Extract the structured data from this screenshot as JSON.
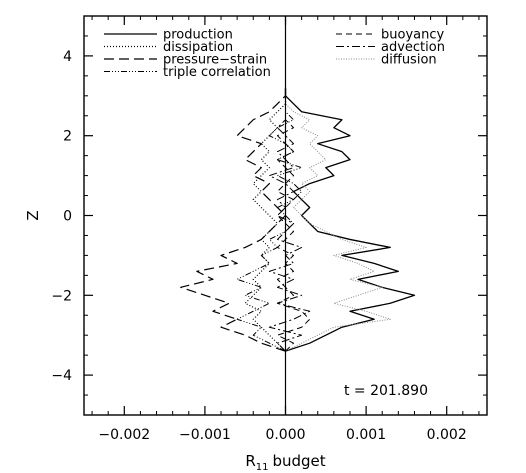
{
  "chart_data": {
    "type": "line",
    "title": "",
    "xlabel": "budget",
    "xlabel_prefix": "R",
    "xlabel_subscript": "11",
    "ylabel": "Z",
    "xlim": [
      -0.0025,
      0.0025
    ],
    "ylim": [
      -5,
      5
    ],
    "x_ticks": [
      -0.002,
      -0.001,
      0.0,
      0.001,
      0.002
    ],
    "x_tick_labels": [
      "−0.002",
      "−0.001",
      "0.000",
      "0.001",
      "0.002"
    ],
    "y_ticks": [
      -4,
      -2,
      0,
      2,
      4
    ],
    "y_tick_labels": [
      "−4",
      "−2",
      "0",
      "2",
      "4"
    ],
    "grid": false,
    "legend_placement": "top",
    "annotation": "t = 201.890",
    "z": [
      -3.4,
      -3.2,
      -3.0,
      -2.8,
      -2.6,
      -2.4,
      -2.2,
      -2.0,
      -1.8,
      -1.6,
      -1.4,
      -1.2,
      -1.0,
      -0.8,
      -0.6,
      -0.4,
      -0.2,
      0.0,
      0.2,
      0.4,
      0.6,
      0.8,
      1.0,
      1.2,
      1.4,
      1.6,
      1.8,
      2.0,
      2.2,
      2.4,
      2.6,
      2.8,
      3.0,
      3.2
    ],
    "series": [
      {
        "name": "production",
        "dash": "solid",
        "color": "#000000",
        "width": 1.3,
        "values": [
          0.0,
          0.0003,
          0.0005,
          0.0007,
          0.0011,
          0.0008,
          0.0013,
          0.0016,
          0.0012,
          0.0009,
          0.0014,
          0.0011,
          0.0007,
          0.0013,
          0.0008,
          0.0004,
          0.0003,
          0.0002,
          0.0003,
          0.0002,
          0.0001,
          0.0003,
          0.0006,
          0.0005,
          0.0008,
          0.0007,
          0.0004,
          0.0008,
          0.0006,
          0.0007,
          0.0002,
          0.0001,
          0.0,
          0.0
        ]
      },
      {
        "name": "dissipation",
        "dash": "1,2",
        "color": "#000000",
        "width": 1.2,
        "values": [
          0.0,
          -0.0001,
          -0.0002,
          -0.0003,
          -0.0004,
          -0.0003,
          -0.0005,
          -0.0004,
          -0.0003,
          -0.0004,
          -0.0003,
          -0.0002,
          -0.0003,
          -0.0002,
          -0.0003,
          -0.0002,
          -0.0001,
          -0.0002,
          -0.0003,
          -0.0004,
          -0.0003,
          -0.0004,
          -0.0003,
          -0.0002,
          -0.0003,
          -0.0002,
          -0.0003,
          -0.0002,
          -0.0001,
          -0.0002,
          -0.0001,
          0.0,
          0.0,
          0.0
        ]
      },
      {
        "name": "pressure−strain",
        "dash": "10,5",
        "color": "#000000",
        "width": 1.2,
        "values": [
          0.0,
          -0.0003,
          -0.0005,
          -0.0008,
          -0.0006,
          -0.0009,
          -0.0007,
          -0.001,
          -0.0013,
          -0.0009,
          -0.0011,
          -0.0006,
          -0.0008,
          -0.0005,
          -0.0003,
          -0.0002,
          -0.0001,
          0.0,
          -0.0001,
          -0.0002,
          -0.0003,
          -0.0002,
          -0.0004,
          -0.0003,
          -0.0005,
          -0.0004,
          -0.0003,
          -0.0006,
          -0.0005,
          -0.0004,
          -0.0002,
          -0.0001,
          0.0,
          0.0
        ]
      },
      {
        "name": "triple correlation",
        "dash": "6,2,1,2,1,2,1,2",
        "color": "#000000",
        "width": 1.0,
        "values": [
          0.0,
          -0.0002,
          -0.0004,
          -0.0003,
          -0.0006,
          -0.0004,
          -0.0002,
          -0.0005,
          -0.0003,
          -0.0006,
          -0.0004,
          -0.0002,
          -0.0003,
          -0.0001,
          -0.0002,
          0.0,
          0.0001,
          0.0,
          -0.0001,
          0.0001,
          0.0002,
          0.0001,
          -0.0001,
          0.0002,
          -0.0001,
          0.0001,
          0.0,
          -0.0002,
          -0.0001,
          0.0001,
          0.0,
          0.0,
          0.0,
          0.0
        ]
      },
      {
        "name": "buoyancy",
        "dash": "6,4",
        "color": "#000000",
        "width": 1.0,
        "values": [
          0.0,
          0.0001,
          -0.0001,
          0.0002,
          0.0003,
          0.0002,
          -0.0001,
          0.0001,
          0.0,
          -0.0001,
          0.0001,
          0.0,
          0.0001,
          -0.0001,
          0.0,
          0.0001,
          0.0,
          -0.0001,
          0.0,
          0.0001,
          -0.0001,
          0.0,
          0.0001,
          0.0,
          -0.0001,
          0.0001,
          0.0,
          -0.0001,
          0.0001,
          0.0,
          0.0,
          0.0,
          0.0,
          0.0
        ]
      },
      {
        "name": "advection",
        "dash": "8,3,2,3",
        "color": "#000000",
        "width": 1.0,
        "values": [
          0.0,
          -0.0001,
          0.0002,
          -0.0002,
          0.0001,
          0.0003,
          -0.0001,
          0.0002,
          -0.0001,
          0.0001,
          -0.0002,
          0.0001,
          0.0,
          0.0002,
          -0.0001,
          0.0,
          0.0001,
          -0.0001,
          0.0,
          -0.0001,
          0.0001,
          0.0,
          -0.0002,
          0.0001,
          0.0,
          -0.0001,
          0.0001,
          0.0,
          -0.0001,
          0.0,
          0.0,
          0.0,
          0.0,
          0.0
        ]
      },
      {
        "name": "diffusion",
        "dash": "1,1.5",
        "color": "#8a8a8a",
        "width": 1.0,
        "values": [
          0.0,
          0.0002,
          0.0004,
          0.0006,
          0.0013,
          0.001,
          0.0006,
          0.0009,
          0.0012,
          0.0008,
          0.0011,
          0.0009,
          0.0006,
          0.001,
          0.0007,
          0.0005,
          0.0003,
          0.0002,
          0.0001,
          0.0002,
          0.0003,
          0.0002,
          0.0004,
          0.0003,
          0.0005,
          0.0004,
          0.0003,
          0.0004,
          0.0002,
          0.0003,
          0.0001,
          0.0,
          0.0,
          0.0
        ]
      }
    ]
  }
}
